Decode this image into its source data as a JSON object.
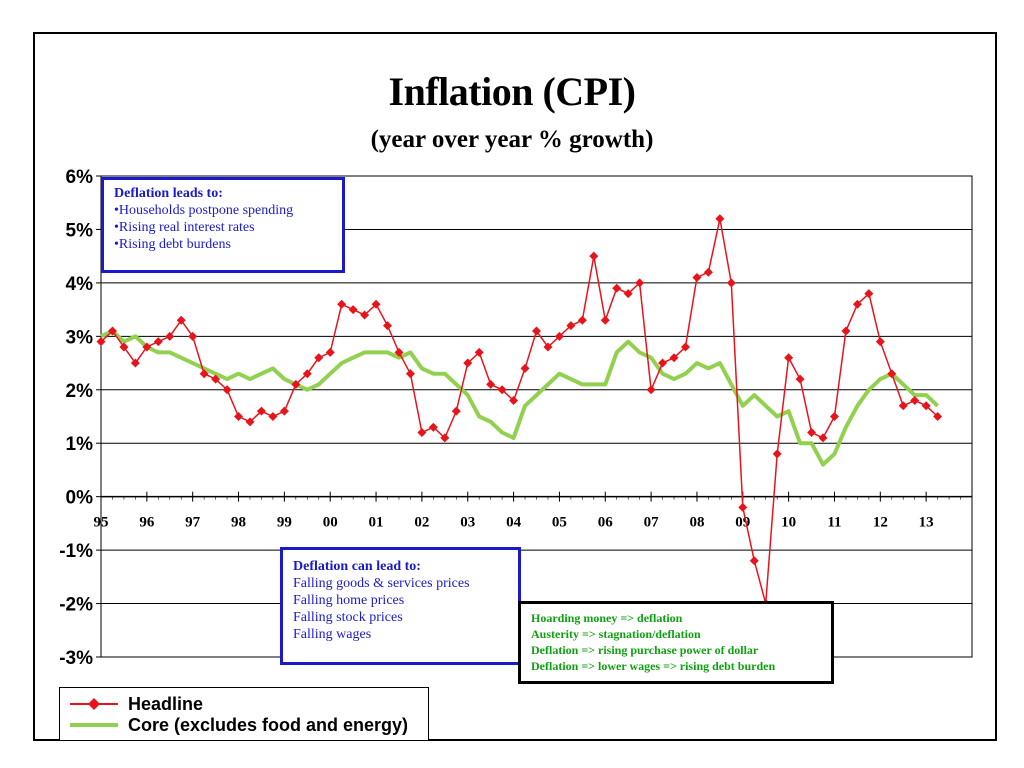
{
  "chart_data": {
    "type": "line",
    "title": "Inflation (CPI)",
    "subtitle": "(year over year % growth)",
    "ylim": [
      -3,
      6
    ],
    "y_ticks": [
      "-3%",
      "-2%",
      "-1%",
      "0%",
      "1%",
      "2%",
      "3%",
      "4%",
      "5%",
      "6%"
    ],
    "y_tick_values": [
      -3,
      -2,
      -1,
      0,
      1,
      2,
      3,
      4,
      5,
      6
    ],
    "x_tick_labels": [
      "95",
      "96",
      "97",
      "98",
      "99",
      "00",
      "01",
      "02",
      "03",
      "04",
      "05",
      "06",
      "07",
      "08",
      "09",
      "10",
      "11",
      "12",
      "13"
    ],
    "xlim": [
      1995,
      2014
    ],
    "grid": true,
    "legend_position": "bottom-left",
    "series": [
      {
        "name": "Headline",
        "color": "#e8141b",
        "marker": "diamond",
        "x": [
          1995.0,
          1995.25,
          1995.5,
          1995.75,
          1996.0,
          1996.25,
          1996.5,
          1996.75,
          1997.0,
          1997.25,
          1997.5,
          1997.75,
          1998.0,
          1998.25,
          1998.5,
          1998.75,
          1999.0,
          1999.25,
          1999.5,
          1999.75,
          2000.0,
          2000.25,
          2000.5,
          2000.75,
          2001.0,
          2001.25,
          2001.5,
          2001.75,
          2002.0,
          2002.25,
          2002.5,
          2002.75,
          2003.0,
          2003.25,
          2003.5,
          2003.75,
          2004.0,
          2004.25,
          2004.5,
          2004.75,
          2005.0,
          2005.25,
          2005.5,
          2005.75,
          2006.0,
          2006.25,
          2006.5,
          2006.75,
          2007.0,
          2007.25,
          2007.5,
          2007.75,
          2008.0,
          2008.25,
          2008.5,
          2008.75,
          2009.0,
          2009.25,
          2009.5,
          2009.75,
          2010.0,
          2010.25,
          2010.5,
          2010.75,
          2011.0,
          2011.25,
          2011.5,
          2011.75,
          2012.0,
          2012.25,
          2012.5,
          2012.75,
          2013.0,
          2013.25
        ],
        "values": [
          2.9,
          3.1,
          2.8,
          2.5,
          2.8,
          2.9,
          3.0,
          3.3,
          3.0,
          2.3,
          2.2,
          2.0,
          1.5,
          1.4,
          1.6,
          1.5,
          1.6,
          2.1,
          2.3,
          2.6,
          2.7,
          3.6,
          3.5,
          3.4,
          3.6,
          3.2,
          2.7,
          2.3,
          1.2,
          1.3,
          1.1,
          1.6,
          2.5,
          2.7,
          2.1,
          2.0,
          1.8,
          2.4,
          3.1,
          2.8,
          3.0,
          3.2,
          3.3,
          4.5,
          3.3,
          3.9,
          3.8,
          4.0,
          2.0,
          2.5,
          2.6,
          2.8,
          4.1,
          4.2,
          5.2,
          4.0,
          -0.2,
          -1.2,
          -2.0,
          0.8,
          2.6,
          2.2,
          1.2,
          1.1,
          1.5,
          3.1,
          3.6,
          3.8,
          2.9,
          2.3,
          1.7,
          1.8,
          1.7,
          1.5
        ]
      },
      {
        "name": "Core (excludes food and energy)",
        "color": "#92d050",
        "marker": "none",
        "x": [
          1995.0,
          1995.25,
          1995.5,
          1995.75,
          1996.0,
          1996.25,
          1996.5,
          1996.75,
          1997.0,
          1997.25,
          1997.5,
          1997.75,
          1998.0,
          1998.25,
          1998.5,
          1998.75,
          1999.0,
          1999.25,
          1999.5,
          1999.75,
          2000.0,
          2000.25,
          2000.5,
          2000.75,
          2001.0,
          2001.25,
          2001.5,
          2001.75,
          2002.0,
          2002.25,
          2002.5,
          2002.75,
          2003.0,
          2003.25,
          2003.5,
          2003.75,
          2004.0,
          2004.25,
          2004.5,
          2004.75,
          2005.0,
          2005.25,
          2005.5,
          2005.75,
          2006.0,
          2006.25,
          2006.5,
          2006.75,
          2007.0,
          2007.25,
          2007.5,
          2007.75,
          2008.0,
          2008.25,
          2008.5,
          2008.75,
          2009.0,
          2009.25,
          2009.5,
          2009.75,
          2010.0,
          2010.25,
          2010.5,
          2010.75,
          2011.0,
          2011.25,
          2011.5,
          2011.75,
          2012.0,
          2012.25,
          2012.5,
          2012.75,
          2013.0,
          2013.25
        ],
        "values": [
          3.0,
          3.1,
          2.9,
          3.0,
          2.8,
          2.7,
          2.7,
          2.6,
          2.5,
          2.4,
          2.3,
          2.2,
          2.3,
          2.2,
          2.3,
          2.4,
          2.2,
          2.1,
          2.0,
          2.1,
          2.3,
          2.5,
          2.6,
          2.7,
          2.7,
          2.7,
          2.6,
          2.7,
          2.4,
          2.3,
          2.3,
          2.1,
          1.9,
          1.5,
          1.4,
          1.2,
          1.1,
          1.7,
          1.9,
          2.1,
          2.3,
          2.2,
          2.1,
          2.1,
          2.1,
          2.7,
          2.9,
          2.7,
          2.6,
          2.3,
          2.2,
          2.3,
          2.5,
          2.4,
          2.5,
          2.1,
          1.7,
          1.9,
          1.7,
          1.5,
          1.6,
          1.0,
          1.0,
          0.6,
          0.8,
          1.3,
          1.7,
          2.0,
          2.2,
          2.3,
          2.1,
          1.9,
          1.9,
          1.7
        ]
      }
    ],
    "annotations": {
      "box_top": {
        "heading": "Deflation leads to:",
        "lines": [
          "•Households postpone spending",
          "•Rising real interest rates",
          "•Rising debt burdens"
        ]
      },
      "box_middle": {
        "heading": "Deflation can lead to:",
        "lines": [
          "Falling goods & services prices",
          "Falling home prices",
          "Falling stock prices",
          "Falling wages"
        ]
      },
      "box_bottom": {
        "lines": [
          "Hoarding money => deflation",
          "Austerity => stagnation/deflation",
          "Deflation => rising purchase power of dollar",
          "Deflation => lower wages => rising debt burden"
        ]
      }
    }
  }
}
